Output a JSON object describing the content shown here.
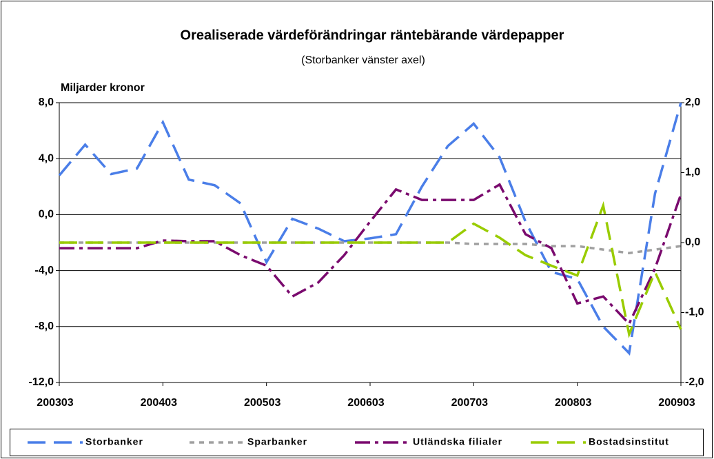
{
  "chart_data": {
    "type": "line",
    "title": "Orealiserade värdeförändringar räntebärande värdepapper",
    "subtitle": "(Storbanker vänster axel)",
    "y_label": "Miljarder kronor",
    "categories": [
      "200303",
      null,
      null,
      null,
      "200403",
      null,
      null,
      null,
      "200503",
      null,
      null,
      null,
      "200603",
      null,
      null,
      null,
      "200703",
      null,
      null,
      null,
      "200803",
      null,
      null,
      null,
      "200903"
    ],
    "ylim": [
      -12,
      8
    ],
    "yticks": [
      {
        "value": -12,
        "label": "-12,0"
      },
      {
        "value": -8,
        "label": "-8,0"
      },
      {
        "value": -4,
        "label": "-4,0"
      },
      {
        "value": 0,
        "label": "0,0"
      },
      {
        "value": 4,
        "label": "4,0"
      },
      {
        "value": 8,
        "label": "8,0"
      }
    ],
    "y2lim": [
      -2,
      2
    ],
    "y2ticks": [
      {
        "value": -2,
        "label": "-2,0"
      },
      {
        "value": -1,
        "label": "-1,0"
      },
      {
        "value": 0,
        "label": "0,0"
      },
      {
        "value": 1,
        "label": "1,0"
      },
      {
        "value": 2,
        "label": "2,0"
      }
    ],
    "grid": true,
    "legend": "bottom",
    "series": [
      {
        "name": "Storbanker",
        "color": "#4a7ee8",
        "dash": "26 12",
        "values": [
          2.8,
          5.0,
          2.9,
          3.3,
          6.6,
          2.5,
          2.1,
          0.8,
          -3.4,
          -0.3,
          -1.0,
          -1.9,
          -1.7,
          -1.4,
          2.0,
          4.9,
          6.5,
          4.1,
          -0.5,
          -4.1,
          -4.6,
          -8.0,
          -9.9,
          1.5,
          8.0
        ]
      },
      {
        "name": "Sparbanker",
        "color": "#a0a0a0",
        "dash": "7 7",
        "axis": "y2",
        "values": [
          0.0,
          0.0,
          0.0,
          0.0,
          0.0,
          0.0,
          0.0,
          0.0,
          0.0,
          0.0,
          0.0,
          0.0,
          0.0,
          0.0,
          0.0,
          0.0,
          -0.02,
          -0.02,
          -0.02,
          -0.05,
          -0.05,
          -0.1,
          -0.15,
          -0.1,
          -0.05
        ]
      },
      {
        "name": "Utländska filialer",
        "color": "#7a0a6e",
        "dash": "22 7 5 7",
        "axis": "y2",
        "values": [
          -0.08,
          -0.08,
          -0.08,
          -0.08,
          0.03,
          0.02,
          0.02,
          -0.18,
          -0.33,
          -0.77,
          -0.57,
          -0.18,
          0.3,
          0.76,
          0.61,
          0.61,
          0.61,
          0.83,
          0.12,
          -0.08,
          -0.87,
          -0.77,
          -1.16,
          -0.37,
          0.69
        ]
      },
      {
        "name": "Bostadsinstitut",
        "color": "#99cc00",
        "dash": "26 12",
        "axis": "y2",
        "values": [
          0.0,
          0.0,
          0.0,
          0.0,
          0.0,
          0.0,
          0.0,
          0.0,
          0.0,
          0.0,
          0.0,
          0.0,
          0.0,
          0.0,
          0.0,
          0.0,
          0.27,
          0.07,
          -0.18,
          -0.33,
          -0.47,
          0.53,
          -1.31,
          -0.42,
          -1.24
        ]
      }
    ]
  }
}
